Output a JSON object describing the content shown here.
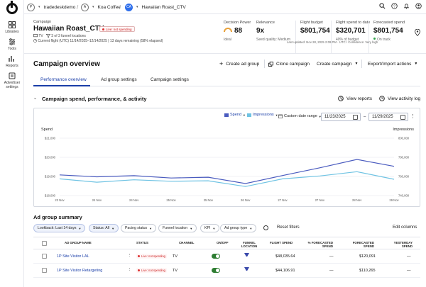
{
  "nav": {
    "rail": [
      {
        "label": "Libraries"
      },
      {
        "label": "Tools"
      },
      {
        "label": "Reports"
      },
      {
        "label": "Advertiser settings"
      }
    ]
  },
  "breadcrumb": {
    "partner": {
      "badge": "P",
      "label": "tradedeskdemo"
    },
    "advertiser": {
      "badge": "A",
      "label": "Koa Coffee"
    },
    "campaign": {
      "badge": "CA",
      "label": "Hawaiian Roast_CTV"
    }
  },
  "campaign": {
    "label": "Campaign",
    "title": "Hawaiian Roast_CTV",
    "status": "Live: not spending",
    "channel": "TV",
    "funnel": "3 of 3 funnel locations",
    "flight": "Current flight (UTC) 11/14/2025–12/14/2025  |  13 days remaining (58% elapsed)"
  },
  "kpis": {
    "decision_power": {
      "label": "Decision Power",
      "value": "88",
      "sub": "Ideal"
    },
    "relevance": {
      "label": "Relevance",
      "value": "9x",
      "sub": "Seed quality: Medium"
    },
    "flight_budget": {
      "label": "Flight budget",
      "value": "$801,754"
    },
    "flight_spend": {
      "label": "Flight spend to date",
      "value": "$320,701",
      "sub": "40% of budget"
    },
    "forecasted_spend": {
      "label": "Forecasted spend",
      "value": "$801,754",
      "sub": "On track"
    },
    "last_updated": "Last updated: Nov 28, 2025 2:09 PM · UTC  /  Confidence: Very high"
  },
  "overview": {
    "title": "Campaign overview",
    "actions": {
      "create_ad_group": "Create ad group",
      "clone_campaign": "Clone campaign",
      "create_campaign": "Create campaign",
      "export_import": "Export/Import actions"
    },
    "tabs": [
      "Performance overview",
      "Ad group settings",
      "Campaign settings"
    ]
  },
  "section": {
    "title": "Campaign spend, performance, & activity",
    "view_reports": "View reports",
    "view_activity_log": "View activity log"
  },
  "chart_controls": {
    "metric1": "Spend",
    "metric2": "Impressions",
    "date_range": "Custom date range",
    "start_date": "11/23/2025",
    "end_date": "11/29/2025"
  },
  "colors": {
    "spend": "#4a5bbf",
    "impressions": "#6fc3e3"
  },
  "chart_data": {
    "type": "line",
    "x": [
      "23 Nov",
      "24 Nov",
      "24 Nov",
      "25 Nov",
      "25 Nov",
      "26 Nov",
      "27 Nov",
      "27 Nov",
      "28 Nov",
      "29 Nov"
    ],
    "y_left_label": "Spend",
    "y_right_label": "Impressions",
    "y_left_ticks": [
      "$21,000",
      "$20,000",
      "$19,000",
      "$18,000"
    ],
    "y_right_ticks": [
      "800,000",
      "780,000",
      "760,000",
      "740,000"
    ],
    "ylim_left": [
      18000,
      21000
    ],
    "ylim_right": [
      740000,
      800000
    ],
    "series": [
      {
        "name": "Spend",
        "axis": "left",
        "values": [
          19080,
          18980,
          19040,
          18920,
          18960,
          18630,
          19050,
          19450,
          19890,
          19530
        ]
      },
      {
        "name": "Impressions",
        "axis": "right",
        "values": [
          757500,
          754000,
          756500,
          755000,
          755500,
          749500,
          757500,
          760500,
          765000,
          757000
        ]
      }
    ]
  },
  "summary": {
    "title": "Ad group summary",
    "filters": {
      "lookback": "Lookback: Last 14 days",
      "status": "Status: All",
      "pacing": "Pacing status",
      "funnel": "Funnel location",
      "kpi": "KPI",
      "ad_group_type": "Ad group type",
      "reset": "Reset filters",
      "edit_columns": "Edit columns"
    },
    "columns": [
      "AD GROUP NAME",
      "STATUS",
      "CHANNEL",
      "ON/OFF",
      "FUNNEL LOCATION",
      "FLIGHT SPEND",
      "% FORECASTED SPEND",
      "FORECASTED SPEND",
      "YESTERDAY SPEND"
    ],
    "rows": [
      {
        "name": "1P Site Visitor LAL",
        "status": "Live: not spending",
        "channel": "TV",
        "flight_spend": "$48,035.64",
        "pct_forecast": "—",
        "forecast": "$120,091",
        "yesterday": "—"
      },
      {
        "name": "1P Site Visitor Retargeting",
        "status": "Live: not spending",
        "channel": "TV",
        "flight_spend": "$44,106.91",
        "pct_forecast": "—",
        "forecast": "$110,265",
        "yesterday": "—"
      }
    ]
  }
}
